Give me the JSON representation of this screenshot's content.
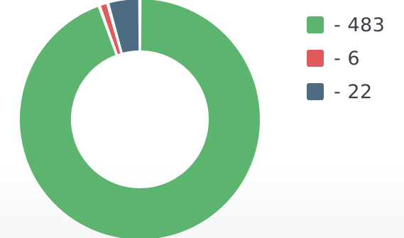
{
  "chart_data": {
    "type": "pie",
    "variant": "donut",
    "categories": [
      "483",
      "6",
      "22"
    ],
    "values": [
      483,
      6,
      22
    ],
    "colors": [
      "#5cb46e",
      "#e05a5e",
      "#4e6b84"
    ],
    "legend_position": "right",
    "legend": [
      {
        "label": "- 483",
        "color": "#5cb46e"
      },
      {
        "label": "- 6",
        "color": "#e05a5e"
      },
      {
        "label": "- 22",
        "color": "#4e6b84"
      }
    ],
    "title": "",
    "start_angle_deg": -90
  }
}
